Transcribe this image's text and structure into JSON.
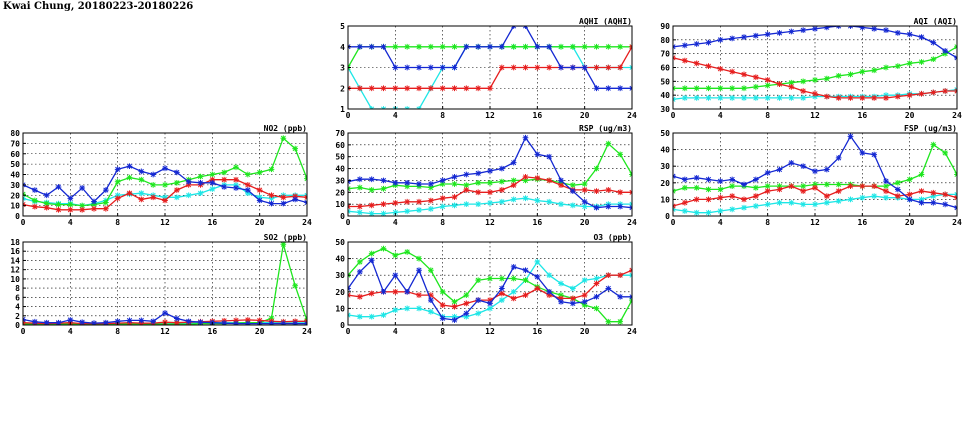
{
  "page_title": "Kwai Chung, 20180223-20180226",
  "colors": {
    "blue": "#1428d2",
    "green": "#1ee61e",
    "red": "#e61e1e",
    "cyan": "#1ee6e6"
  },
  "chart_data": [
    {
      "id": "aqhi",
      "type": "line",
      "title": "AQHI (AQHI)",
      "xlim": [
        0,
        24
      ],
      "xticks": [
        0,
        4,
        8,
        12,
        16,
        20,
        24
      ],
      "ylim": [
        1,
        5
      ],
      "yticks": [
        1,
        2,
        3,
        4,
        5
      ],
      "grid": true,
      "x": [
        0,
        1,
        2,
        3,
        4,
        5,
        6,
        7,
        8,
        9,
        10,
        11,
        12,
        13,
        14,
        15,
        16,
        17,
        18,
        19,
        20,
        21,
        22,
        23,
        24
      ],
      "series": [
        {
          "color": "#1ee6e6",
          "values": [
            3,
            2,
            1,
            1,
            1,
            1,
            1,
            2,
            3,
            3,
            4,
            4,
            4,
            4,
            4,
            4,
            4,
            4,
            4,
            4,
            3,
            3,
            3,
            3,
            3
          ]
        },
        {
          "color": "#1ee61e",
          "values": [
            3,
            4,
            4,
            4,
            4,
            4,
            4,
            4,
            4,
            4,
            4,
            4,
            4,
            4,
            4,
            4,
            4,
            4,
            4,
            4,
            4,
            4,
            4,
            4,
            4
          ]
        },
        {
          "color": "#e61e1e",
          "values": [
            2,
            2,
            2,
            2,
            2,
            2,
            2,
            2,
            2,
            2,
            2,
            2,
            2,
            3,
            3,
            3,
            3,
            3,
            3,
            3,
            3,
            3,
            3,
            3,
            4
          ]
        },
        {
          "color": "#1428d2",
          "values": [
            4,
            4,
            4,
            4,
            3,
            3,
            3,
            3,
            3,
            3,
            4,
            4,
            4,
            4,
            5,
            5,
            4,
            4,
            3,
            3,
            3,
            2,
            2,
            2,
            2
          ]
        }
      ]
    },
    {
      "id": "aqi",
      "type": "line",
      "title": "AQI (AQI)",
      "xlim": [
        0,
        24
      ],
      "xticks": [
        0,
        4,
        8,
        12,
        16,
        20,
        24
      ],
      "ylim": [
        30,
        90
      ],
      "yticks": [
        30,
        40,
        50,
        60,
        70,
        80,
        90
      ],
      "grid": true,
      "x": [
        0,
        1,
        2,
        3,
        4,
        5,
        6,
        7,
        8,
        9,
        10,
        11,
        12,
        13,
        14,
        15,
        16,
        17,
        18,
        19,
        20,
        21,
        22,
        23,
        24
      ],
      "series": [
        {
          "color": "#1ee6e6",
          "values": [
            37,
            38,
            38,
            38,
            38,
            38,
            38,
            38,
            38,
            38,
            38,
            38,
            39,
            39,
            39,
            39,
            39,
            39,
            40,
            40,
            41,
            41,
            42,
            43,
            44
          ]
        },
        {
          "color": "#1ee61e",
          "values": [
            45,
            45,
            45,
            45,
            45,
            45,
            45,
            46,
            47,
            48,
            49,
            50,
            51,
            52,
            54,
            55,
            57,
            58,
            60,
            61,
            63,
            64,
            66,
            70,
            75
          ]
        },
        {
          "color": "#e61e1e",
          "values": [
            67,
            65,
            63,
            61,
            59,
            57,
            55,
            53,
            51,
            48,
            46,
            43,
            41,
            39,
            38,
            38,
            38,
            38,
            38,
            39,
            40,
            41,
            42,
            43,
            43
          ]
        },
        {
          "color": "#1428d2",
          "values": [
            75,
            76,
            77,
            78,
            80,
            81,
            82,
            83,
            84,
            85,
            86,
            87,
            88,
            89,
            90,
            90,
            89,
            88,
            87,
            85,
            84,
            82,
            78,
            72,
            67
          ]
        }
      ]
    },
    {
      "id": "no2",
      "type": "line",
      "title": "NO2 (ppb)",
      "xlim": [
        0,
        24
      ],
      "xticks": [
        0,
        4,
        8,
        12,
        16,
        20,
        24
      ],
      "ylim": [
        0,
        80
      ],
      "yticks": [
        0,
        10,
        20,
        30,
        40,
        50,
        60,
        70,
        80
      ],
      "grid": true,
      "x": [
        0,
        1,
        2,
        3,
        4,
        5,
        6,
        7,
        8,
        9,
        10,
        11,
        12,
        13,
        14,
        15,
        16,
        17,
        18,
        19,
        20,
        21,
        22,
        23,
        24
      ],
      "series": [
        {
          "color": "#1ee6e6",
          "values": [
            17,
            14,
            13,
            12,
            12,
            10,
            12,
            15,
            20,
            21,
            22,
            20,
            18,
            18,
            20,
            22,
            26,
            30,
            30,
            22,
            18,
            17,
            20,
            20,
            20
          ]
        },
        {
          "color": "#1ee61e",
          "values": [
            21,
            15,
            12,
            11,
            11,
            10,
            11,
            13,
            33,
            37,
            35,
            30,
            30,
            32,
            35,
            38,
            40,
            42,
            47,
            40,
            42,
            45,
            75,
            65,
            36
          ]
        },
        {
          "color": "#e61e1e",
          "values": [
            11,
            9,
            8,
            6,
            6,
            6,
            7,
            7,
            17,
            22,
            16,
            18,
            15,
            25,
            30,
            30,
            35,
            35,
            35,
            30,
            25,
            20,
            18,
            19,
            18
          ]
        },
        {
          "color": "#1428d2",
          "values": [
            30,
            25,
            20,
            28,
            17,
            27,
            14,
            25,
            45,
            48,
            43,
            40,
            46,
            42,
            33,
            32,
            32,
            28,
            27,
            25,
            15,
            12,
            12,
            16,
            13
          ]
        }
      ]
    },
    {
      "id": "rsp",
      "type": "line",
      "title": "RSP (ug/m3)",
      "xlim": [
        0,
        24
      ],
      "xticks": [
        0,
        4,
        8,
        12,
        16,
        20,
        24
      ],
      "ylim": [
        0,
        70
      ],
      "yticks": [
        0,
        10,
        20,
        30,
        40,
        50,
        60,
        70
      ],
      "grid": true,
      "x": [
        0,
        1,
        2,
        3,
        4,
        5,
        6,
        7,
        8,
        9,
        10,
        11,
        12,
        13,
        14,
        15,
        16,
        17,
        18,
        19,
        20,
        21,
        22,
        23,
        24
      ],
      "series": [
        {
          "color": "#1ee6e6",
          "values": [
            4,
            3,
            2,
            2,
            3,
            4,
            5,
            6,
            8,
            9,
            10,
            10,
            11,
            12,
            14,
            15,
            13,
            12,
            10,
            9,
            8,
            8,
            10,
            10,
            10
          ]
        },
        {
          "color": "#1ee61e",
          "values": [
            23,
            24,
            22,
            23,
            26,
            25,
            25,
            24,
            27,
            27,
            26,
            28,
            28,
            29,
            30,
            30,
            31,
            30,
            28,
            26,
            27,
            40,
            61,
            52,
            35
          ]
        },
        {
          "color": "#e61e1e",
          "values": [
            8,
            8,
            9,
            10,
            11,
            12,
            12,
            13,
            15,
            16,
            22,
            20,
            20,
            22,
            26,
            33,
            32,
            30,
            26,
            22,
            22,
            21,
            22,
            20,
            20
          ]
        },
        {
          "color": "#1428d2",
          "values": [
            29,
            31,
            31,
            30,
            28,
            28,
            27,
            27,
            30,
            33,
            35,
            36,
            38,
            40,
            45,
            66,
            52,
            50,
            30,
            21,
            12,
            7,
            8,
            8,
            7
          ]
        }
      ]
    },
    {
      "id": "fsp",
      "type": "line",
      "title": "FSP (ug/m3)",
      "xlim": [
        0,
        24
      ],
      "xticks": [
        0,
        4,
        8,
        12,
        16,
        20,
        24
      ],
      "ylim": [
        0,
        50
      ],
      "yticks": [
        0,
        10,
        20,
        30,
        40,
        50
      ],
      "grid": true,
      "x": [
        0,
        1,
        2,
        3,
        4,
        5,
        6,
        7,
        8,
        9,
        10,
        11,
        12,
        13,
        14,
        15,
        16,
        17,
        18,
        19,
        20,
        21,
        22,
        23,
        24
      ],
      "series": [
        {
          "color": "#1ee6e6",
          "values": [
            4,
            3,
            2,
            2,
            3,
            4,
            5,
            6,
            7,
            8,
            8,
            7,
            7,
            8,
            9,
            10,
            11,
            12,
            11,
            11,
            10,
            10,
            12,
            13,
            13
          ]
        },
        {
          "color": "#1ee61e",
          "values": [
            15,
            17,
            17,
            16,
            16,
            18,
            18,
            17,
            18,
            18,
            18,
            18,
            19,
            19,
            19,
            19,
            18,
            18,
            18,
            20,
            22,
            25,
            43,
            38,
            25
          ]
        },
        {
          "color": "#e61e1e",
          "values": [
            6,
            8,
            10,
            10,
            11,
            12,
            10,
            12,
            15,
            16,
            18,
            15,
            17,
            12,
            15,
            18,
            18,
            18,
            15,
            12,
            13,
            15,
            14,
            13,
            11
          ]
        },
        {
          "color": "#1428d2",
          "values": [
            24,
            22,
            23,
            22,
            21,
            22,
            19,
            22,
            26,
            28,
            32,
            30,
            27,
            28,
            35,
            48,
            38,
            37,
            21,
            16,
            10,
            8,
            8,
            7,
            5
          ]
        }
      ]
    },
    {
      "id": "so2",
      "type": "line",
      "title": "SO2 (ppb)",
      "xlim": [
        0,
        24
      ],
      "xticks": [
        0,
        4,
        8,
        12,
        16,
        20,
        24
      ],
      "ylim": [
        0,
        18
      ],
      "yticks": [
        0,
        2,
        4,
        6,
        8,
        10,
        12,
        14,
        16,
        18
      ],
      "grid": true,
      "x": [
        0,
        1,
        2,
        3,
        4,
        5,
        6,
        7,
        8,
        9,
        10,
        11,
        12,
        13,
        14,
        15,
        16,
        17,
        18,
        19,
        20,
        21,
        22,
        23,
        24
      ],
      "series": [
        {
          "color": "#1ee6e6",
          "values": [
            0.3,
            0.2,
            0.2,
            0.2,
            0.2,
            0.2,
            0.2,
            0.3,
            0.3,
            0.3,
            0.3,
            0.3,
            0.3,
            0.4,
            0.4,
            0.4,
            0.5,
            0.5,
            0.5,
            0.5,
            0.5,
            0.5,
            0.6,
            0.6,
            0.6
          ]
        },
        {
          "color": "#1ee61e",
          "values": [
            0.2,
            0.2,
            0.2,
            0.2,
            0.2,
            0.2,
            0.2,
            0.2,
            0.2,
            0.2,
            0.2,
            0.2,
            0.2,
            0.2,
            0.2,
            0.3,
            0.3,
            0.3,
            0.4,
            0.5,
            0.5,
            1.5,
            17.5,
            8.5,
            1.0
          ]
        },
        {
          "color": "#e61e1e",
          "values": [
            0.5,
            0.4,
            0.3,
            0.4,
            0.5,
            0.3,
            0.3,
            0.3,
            0.4,
            0.5,
            0.4,
            0.4,
            0.6,
            0.5,
            0.6,
            0.7,
            0.8,
            0.9,
            1.0,
            1.1,
            1.0,
            0.8,
            0.7,
            0.8,
            0.8
          ]
        },
        {
          "color": "#1428d2",
          "values": [
            1.2,
            0.7,
            0.5,
            0.5,
            1.1,
            0.6,
            0.4,
            0.5,
            0.8,
            1.0,
            1.0,
            0.8,
            2.6,
            1.4,
            0.8,
            0.6,
            0.5,
            0.4,
            0.3,
            0.3,
            0.3,
            0.3,
            0.3,
            0.3,
            0.3
          ]
        }
      ]
    },
    {
      "id": "o3",
      "type": "line",
      "title": "O3 (ppb)",
      "xlim": [
        0,
        24
      ],
      "xticks": [
        0,
        4,
        8,
        12,
        16,
        20,
        24
      ],
      "ylim": [
        0,
        50
      ],
      "yticks": [
        0,
        10,
        20,
        30,
        40,
        50
      ],
      "grid": true,
      "x": [
        0,
        1,
        2,
        3,
        4,
        5,
        6,
        7,
        8,
        9,
        10,
        11,
        12,
        13,
        14,
        15,
        16,
        17,
        18,
        19,
        20,
        21,
        22,
        23,
        24
      ],
      "series": [
        {
          "color": "#1ee6e6",
          "values": [
            6,
            5,
            5,
            6,
            9,
            10,
            10,
            8,
            5,
            5,
            5,
            7,
            10,
            15,
            20,
            27,
            38,
            30,
            25,
            22,
            27,
            28,
            30,
            30,
            30
          ]
        },
        {
          "color": "#1ee61e",
          "values": [
            30,
            38,
            43,
            46,
            42,
            44,
            40,
            33,
            20,
            14,
            18,
            27,
            28,
            28,
            28,
            27,
            23,
            20,
            18,
            16,
            12,
            10,
            2,
            2,
            15
          ]
        },
        {
          "color": "#e61e1e",
          "values": [
            18,
            17,
            19,
            20,
            20,
            20,
            18,
            18,
            12,
            11,
            13,
            15,
            15,
            19,
            16,
            18,
            22,
            18,
            16,
            16,
            18,
            25,
            30,
            30,
            33
          ]
        },
        {
          "color": "#1428d2",
          "values": [
            22,
            32,
            39,
            20,
            30,
            20,
            33,
            15,
            4,
            3,
            7,
            15,
            13,
            22,
            35,
            33,
            29,
            20,
            14,
            13,
            14,
            17,
            22,
            17,
            17
          ]
        }
      ]
    }
  ]
}
